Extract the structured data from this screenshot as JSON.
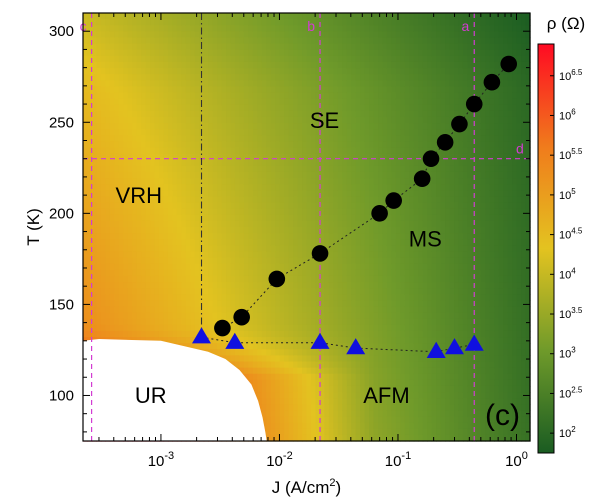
{
  "chart_data": {
    "type": "heatmap",
    "xlabel": "J (A/cm²)",
    "ylabel": "T (K)",
    "xscale": "log",
    "xlim": [
      0.00022,
      1.3
    ],
    "ylim": [
      75,
      310
    ],
    "x_tick_labels": [
      {
        "x": 0.001,
        "base": "10",
        "exp": "-3"
      },
      {
        "x": 0.01,
        "base": "10",
        "exp": "-2"
      },
      {
        "x": 0.1,
        "base": "10",
        "exp": "-1"
      },
      {
        "x": 1,
        "base": "10",
        "exp": "0"
      }
    ],
    "y_ticks": [
      100,
      150,
      200,
      250,
      300
    ],
    "colorbar": {
      "title": "ρ (Ω)",
      "scale": "log",
      "range_log10": [
        1.75,
        6.9
      ],
      "ticks": [
        {
          "log10": 2,
          "label_base": "10",
          "label_exp": "2"
        },
        {
          "log10": 2.5,
          "label_base": "10",
          "label_exp": "2.5"
        },
        {
          "log10": 3,
          "label_base": "10",
          "label_exp": "3"
        },
        {
          "log10": 3.5,
          "label_base": "10",
          "label_exp": "3.5"
        },
        {
          "log10": 4,
          "label_base": "10",
          "label_exp": "4"
        },
        {
          "log10": 4.5,
          "label_base": "10",
          "label_exp": "4.5"
        },
        {
          "log10": 5,
          "label_base": "10",
          "label_exp": "5"
        },
        {
          "log10": 5.5,
          "label_base": "10",
          "label_exp": "5.5"
        },
        {
          "log10": 6,
          "label_base": "10",
          "label_exp": "6"
        },
        {
          "log10": 6.5,
          "label_base": "10",
          "label_exp": "6.5"
        }
      ],
      "colors": [
        "#1a5c22",
        "#6f9a2a",
        "#e3c320",
        "#f07b1c",
        "#ff0a22"
      ]
    },
    "series": [
      {
        "marker": "circle",
        "color": "#000000",
        "x": [
          0.0033,
          0.0048,
          0.0095,
          0.022,
          0.07,
          0.092,
          0.16,
          0.19,
          0.25,
          0.33,
          0.44,
          0.62,
          0.86
        ],
        "y": [
          137,
          143,
          164,
          178,
          200,
          207,
          219,
          230,
          239,
          249,
          260,
          272,
          282
        ]
      },
      {
        "marker": "triangle",
        "color": "#1010e0",
        "x": [
          0.0022,
          0.0042,
          0.022,
          0.044,
          0.21,
          0.3,
          0.44
        ],
        "y": [
          132,
          129,
          129,
          126,
          124,
          126,
          128
        ]
      }
    ],
    "guide_lines": [
      {
        "label": "c",
        "orientation": "vertical",
        "x": 0.00026
      },
      {
        "label": "b",
        "orientation": "vertical",
        "x": 0.022
      },
      {
        "label": "a",
        "orientation": "vertical",
        "x": 0.44
      },
      {
        "label": "d",
        "orientation": "horizontal",
        "y": 230
      }
    ],
    "region_labels": [
      {
        "label": "SE",
        "x": 0.024,
        "y": 250
      },
      {
        "label": "VRH",
        "x": 0.00065,
        "y": 209
      },
      {
        "label": "MS",
        "x": 0.17,
        "y": 185
      },
      {
        "label": "UR",
        "x": 0.00082,
        "y": 99
      },
      {
        "label": "AFM",
        "x": 0.08,
        "y": 99
      }
    ],
    "unmeasured_region": {
      "label": "UR",
      "boundary": [
        [
          0.00022,
          75
        ],
        [
          0.00022,
          130
        ],
        [
          0.0003,
          131
        ],
        [
          0.001,
          130
        ],
        [
          0.0025,
          124
        ],
        [
          0.0035,
          120
        ],
        [
          0.0046,
          114
        ],
        [
          0.0058,
          106
        ],
        [
          0.0066,
          97
        ],
        [
          0.0072,
          88
        ],
        [
          0.0076,
          80
        ],
        [
          0.0078,
          75
        ]
      ]
    },
    "panel_label": "(c)"
  }
}
